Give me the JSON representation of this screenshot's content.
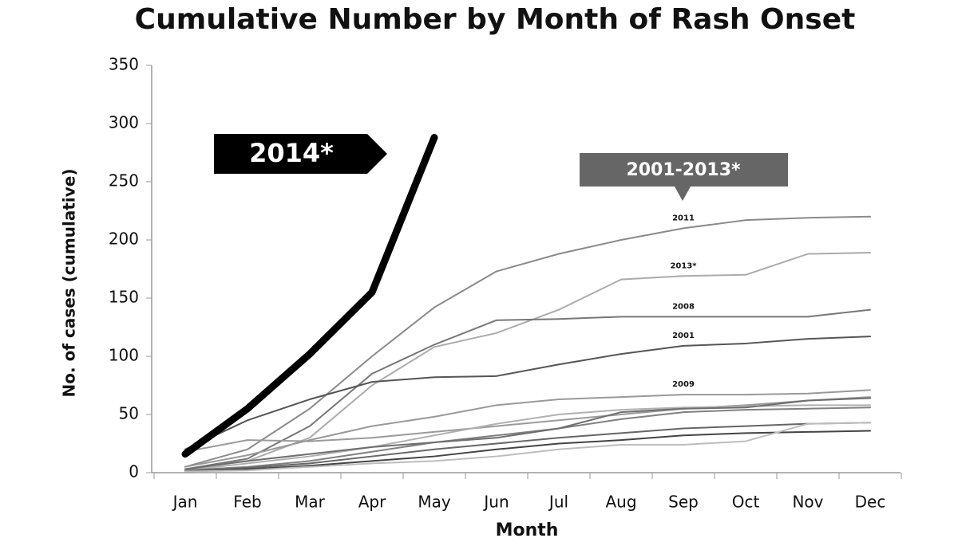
{
  "chart_data": {
    "type": "line",
    "title": "Cumulative Number by Month of Rash Onset",
    "x_label": "Month",
    "y_label": "No. of cases (cumulative)",
    "categories": [
      "Jan",
      "Feb",
      "Mar",
      "Apr",
      "May",
      "Jun",
      "Jul",
      "Aug",
      "Sep",
      "Oct",
      "Nov",
      "Dec"
    ],
    "ylim": [
      0,
      350
    ],
    "yticks": [
      0,
      50,
      100,
      150,
      200,
      250,
      300,
      350
    ],
    "annotations": [
      "2001-2013*"
    ],
    "series": [
      {
        "name": "2014*",
        "color": "#000000",
        "line_width": 9,
        "values": [
          16,
          55,
          102,
          155,
          288,
          null,
          null,
          null,
          null,
          null,
          null,
          null
        ]
      },
      {
        "name": "2011",
        "color": "#8a8a8a",
        "line_width": 2,
        "values": [
          5,
          20,
          55,
          100,
          142,
          173,
          188,
          200,
          210,
          217,
          219,
          220
        ]
      },
      {
        "name": "2013*",
        "color": "#ababab",
        "line_width": 2,
        "values": [
          3,
          10,
          30,
          75,
          108,
          120,
          140,
          166,
          169,
          170,
          188,
          189
        ]
      },
      {
        "name": "2008",
        "color": "#777777",
        "line_width": 2,
        "values": [
          3,
          12,
          40,
          85,
          110,
          131,
          132,
          134,
          134,
          134,
          134,
          140
        ]
      },
      {
        "name": "2001",
        "color": "#555555",
        "line_width": 2,
        "values": [
          20,
          45,
          63,
          78,
          82,
          83,
          93,
          102,
          109,
          111,
          115,
          117
        ]
      },
      {
        "name": "2009",
        "color": "#999999",
        "line_width": 2,
        "values": [
          5,
          15,
          28,
          40,
          48,
          58,
          63,
          65,
          67,
          67,
          68,
          71
        ]
      },
      {
        "color": "#9a9a9a",
        "line_width": 2,
        "values": [
          18,
          28,
          27,
          30,
          35,
          40,
          45,
          50,
          55,
          58,
          62,
          65
        ]
      },
      {
        "color": "#b0b0b0",
        "line_width": 2,
        "values": [
          2,
          8,
          14,
          22,
          32,
          42,
          50,
          54,
          56,
          57,
          58,
          58
        ]
      },
      {
        "color": "#808080",
        "line_width": 2,
        "values": [
          2,
          5,
          10,
          18,
          26,
          32,
          38,
          46,
          52,
          54,
          55,
          56
        ]
      },
      {
        "color": "#666666",
        "line_width": 2,
        "values": [
          1,
          4,
          8,
          14,
          20,
          25,
          30,
          34,
          38,
          40,
          42,
          43
        ]
      },
      {
        "color": "#444444",
        "line_width": 2,
        "values": [
          1,
          3,
          6,
          10,
          14,
          20,
          25,
          28,
          32,
          34,
          35,
          36
        ]
      },
      {
        "color": "#6e6e6e",
        "line_width": 2,
        "values": [
          3,
          10,
          16,
          22,
          26,
          30,
          38,
          52,
          55,
          56,
          62,
          64
        ]
      },
      {
        "color": "#bdbdbd",
        "line_width": 2,
        "values": [
          1,
          2,
          5,
          8,
          10,
          14,
          20,
          24,
          24,
          27,
          42,
          43
        ]
      }
    ]
  }
}
